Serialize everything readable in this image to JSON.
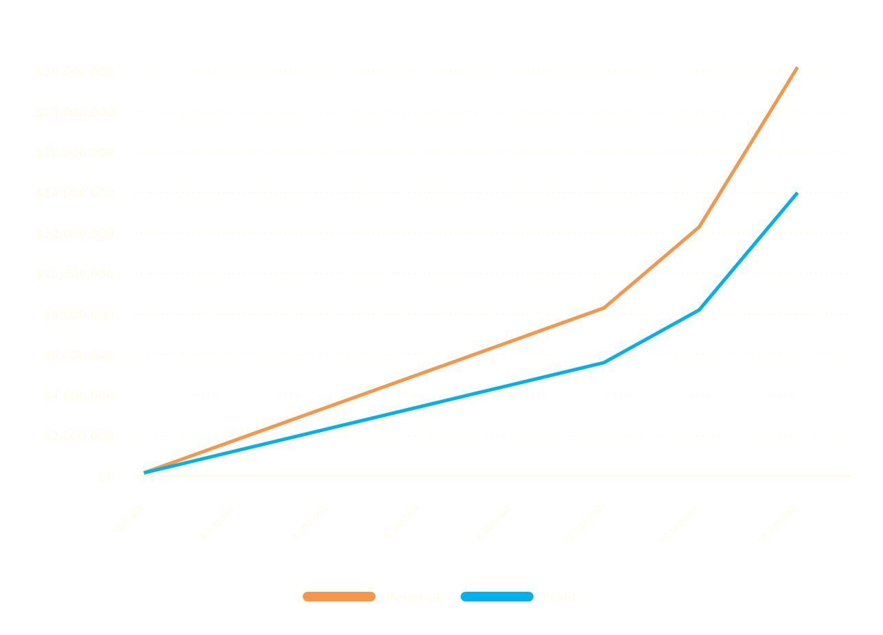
{
  "chart_data": {
    "type": "line",
    "title": "",
    "xlabel": "",
    "ylabel": "",
    "categories": [
      "500,000",
      "2,500,000",
      "4,500,000",
      "6,500,000",
      "8,500,000",
      "10,500,000",
      "12,500,000",
      "15,500,000"
    ],
    "x_positions": [
      500000,
      6300000,
      12100000,
      17900000,
      23700000,
      29500000,
      35500000,
      41700000
    ],
    "y_ticks": [
      0,
      2000000,
      4000000,
      6000000,
      8000000,
      10000000,
      12000000,
      14000000,
      16000000,
      18000000,
      20000000
    ],
    "y_tick_labels": [
      "$0",
      "$2,000,000",
      "$4,000,000",
      "$6,000,000",
      "$8,000,000",
      "$10,000,000",
      "$12,000,000",
      "$14,000,000",
      "$16,000,000",
      "$18,000,000",
      "$20,000,000"
    ],
    "ylim": [
      0,
      20000000
    ],
    "series": [
      {
        "name": "Revenue",
        "color": "#f79646",
        "x": [
          500000,
          29500000,
          35500000,
          41700000
        ],
        "y": [
          150000,
          8300000,
          12300000,
          20200000
        ]
      },
      {
        "name": "Profit",
        "color": "#00b0f0",
        "x": [
          500000,
          29500000,
          35500000,
          41700000
        ],
        "y": [
          150000,
          5600000,
          8200000,
          14000000
        ]
      }
    ],
    "grid": true,
    "legend_position": "bottom",
    "text_color": "#fefee6",
    "grid_color": "#fdfbe8",
    "axis_color": "#fdfbe8"
  }
}
